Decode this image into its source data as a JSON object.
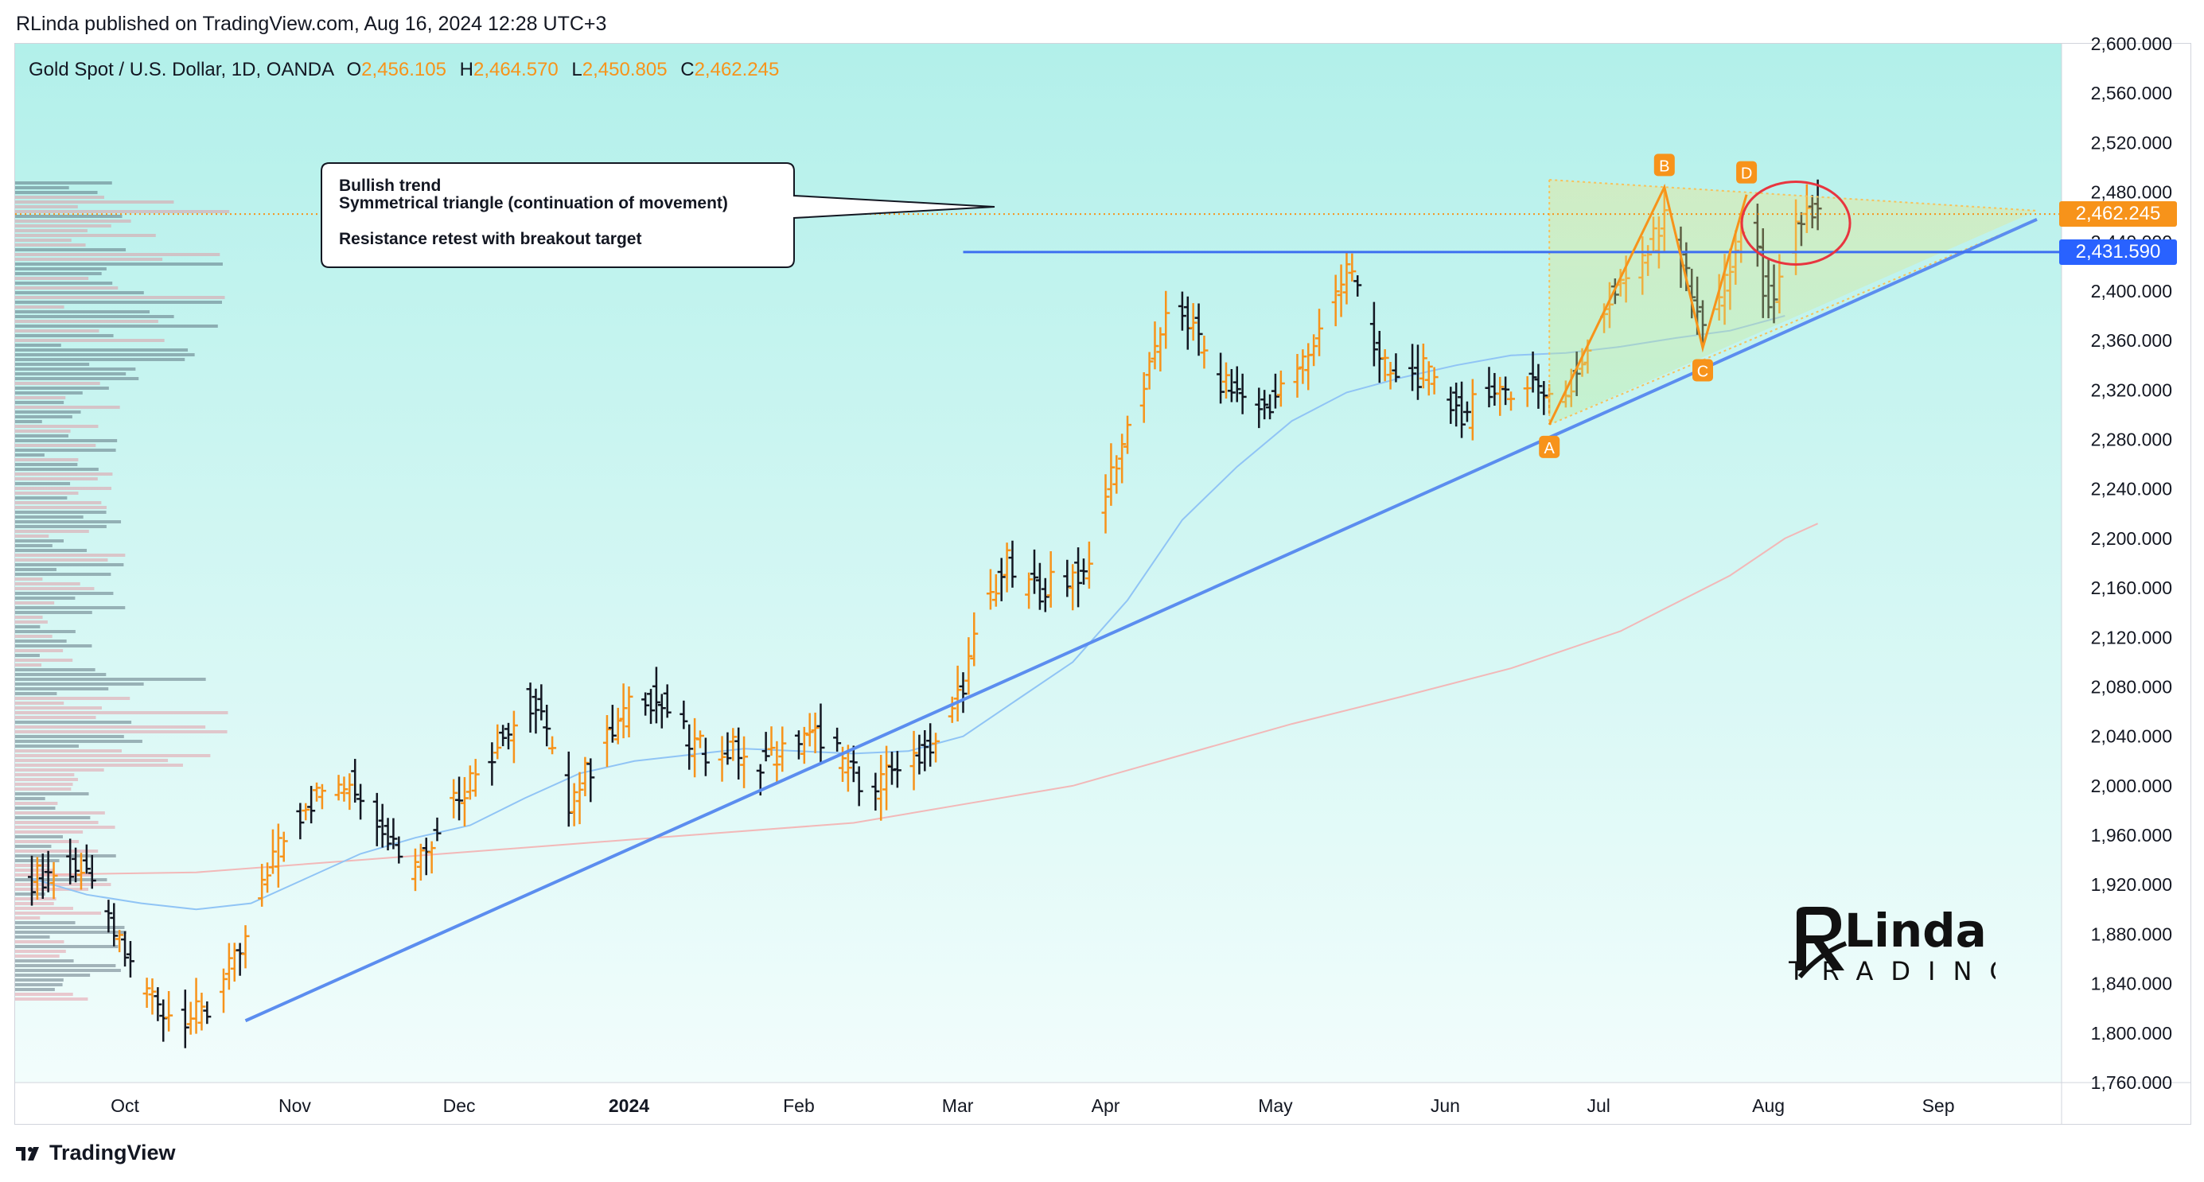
{
  "publisher": "RLinda published on TradingView.com, Aug 16, 2024 12:28 UTC+3",
  "legend": {
    "symbol": "Gold Spot / U.S. Dollar, 1D, OANDA",
    "open_label": "O",
    "open": "2,456.105",
    "high_label": "H",
    "high": "2,464.570",
    "low_label": "L",
    "low": "2,450.805",
    "close_label": "C",
    "close": "2,462.245"
  },
  "callout": {
    "line1": "Bullish trend",
    "line2": "Symmetrical triangle (continuation of movement)",
    "line3": "Resistance retest with breakout target"
  },
  "price_tags": {
    "current": "2,462.245",
    "resistance": "2,431.590"
  },
  "pattern_labels": [
    "A",
    "B",
    "C",
    "D"
  ],
  "watermark": {
    "brand": "Linda",
    "sub": "TRADING"
  },
  "footer": {
    "brand": "TradingView"
  },
  "colors": {
    "bg_top": "#b2f0ea",
    "bg_bottom": "#f2fdfc",
    "candle_up": "#f7931a",
    "candle_down": "#131722",
    "trendline": "#5b8def",
    "resistance": "#3d6ff0",
    "ma_fast": "#90c4f5",
    "ma_slow": "#f2b8b8",
    "triangle": "#f7c25c",
    "highlight": "#e8353f"
  },
  "chart_data": {
    "type": "ohlc",
    "title": "Gold Spot / U.S. Dollar, 1D, OANDA",
    "ylim": [
      1760,
      2600
    ],
    "y_ticks": [
      "1,760.000",
      "1,800.000",
      "1,840.000",
      "1,880.000",
      "1,920.000",
      "1,960.000",
      "2,000.000",
      "2,040.000",
      "2,080.000",
      "2,120.000",
      "2,160.000",
      "2,200.000",
      "2,240.000",
      "2,280.000",
      "2,320.000",
      "2,360.000",
      "2,400.000",
      "2,440.000",
      "2,480.000",
      "2,520.000",
      "2,560.000",
      "2,600.000"
    ],
    "x_ticks": [
      "Oct",
      "Nov",
      "Dec",
      "2024",
      "Feb",
      "Mar",
      "Apr",
      "May",
      "Jun",
      "Jul",
      "Aug",
      "Sep"
    ],
    "x_range_days": [
      0,
      366
    ],
    "x_tick_days": [
      17,
      48,
      78,
      109,
      140,
      169,
      196,
      227,
      258,
      286,
      317,
      348
    ],
    "current_price": 2462.245,
    "resistance_level": 2431.59,
    "support_trendline": [
      [
        39,
        1810
      ],
      [
        366,
        2458
      ]
    ],
    "triangle": {
      "upper": [
        [
          277,
          2490
        ],
        [
          366,
          2465
        ]
      ],
      "lower": [
        [
          277,
          2292
        ],
        [
          366,
          2458
        ]
      ]
    },
    "pattern_points": [
      {
        "label": "A",
        "day": 277,
        "price": 2292
      },
      {
        "label": "B",
        "day": 298,
        "price": 2484
      },
      {
        "label": "C",
        "day": 305,
        "price": 2354
      },
      {
        "label": "D",
        "day": 313,
        "price": 2478
      }
    ],
    "price_path": [
      [
        0,
        1925
      ],
      [
        8,
        1935
      ],
      [
        12,
        1910
      ],
      [
        16,
        1870
      ],
      [
        20,
        1840
      ],
      [
        24,
        1820
      ],
      [
        28,
        1812
      ],
      [
        32,
        1818
      ],
      [
        36,
        1850
      ],
      [
        40,
        1880
      ],
      [
        42,
        1925
      ],
      [
        46,
        1960
      ],
      [
        50,
        1985
      ],
      [
        54,
        1998
      ],
      [
        58,
        2005
      ],
      [
        62,
        1985
      ],
      [
        66,
        1955
      ],
      [
        69,
        1935
      ],
      [
        73,
        1960
      ],
      [
        76,
        1985
      ],
      [
        80,
        2005
      ],
      [
        84,
        2028
      ],
      [
        88,
        2050
      ],
      [
        90,
        2072
      ],
      [
        93,
        2055
      ],
      [
        96,
        2010
      ],
      [
        98,
        1988
      ],
      [
        100,
        2002
      ],
      [
        104,
        2030
      ],
      [
        108,
        2058
      ],
      [
        112,
        2075
      ],
      [
        116,
        2060
      ],
      [
        120,
        2035
      ],
      [
        124,
        2025
      ],
      [
        128,
        2030
      ],
      [
        132,
        2020
      ],
      [
        136,
        2025
      ],
      [
        140,
        2035
      ],
      [
        144,
        2040
      ],
      [
        146,
        2030
      ],
      [
        150,
        2010
      ],
      [
        154,
        1995
      ],
      [
        158,
        2018
      ],
      [
        162,
        2028
      ],
      [
        166,
        2040
      ],
      [
        170,
        2085
      ],
      [
        174,
        2145
      ],
      [
        178,
        2180
      ],
      [
        180,
        2165
      ],
      [
        184,
        2160
      ],
      [
        188,
        2168
      ],
      [
        192,
        2172
      ],
      [
        196,
        2238
      ],
      [
        200,
        2290
      ],
      [
        204,
        2335
      ],
      [
        206,
        2370
      ],
      [
        210,
        2385
      ],
      [
        214,
        2350
      ],
      [
        216,
        2330
      ],
      [
        220,
        2318
      ],
      [
        224,
        2305
      ],
      [
        228,
        2318
      ],
      [
        232,
        2342
      ],
      [
        236,
        2376
      ],
      [
        240,
        2418
      ],
      [
        242,
        2405
      ],
      [
        246,
        2340
      ],
      [
        250,
        2325
      ],
      [
        254,
        2335
      ],
      [
        258,
        2310
      ],
      [
        262,
        2300
      ],
      [
        266,
        2325
      ],
      [
        270,
        2315
      ],
      [
        274,
        2330
      ],
      [
        277,
        2310
      ],
      [
        280,
        2318
      ],
      [
        284,
        2355
      ],
      [
        288,
        2395
      ],
      [
        292,
        2415
      ],
      [
        296,
        2440
      ],
      [
        298,
        2470
      ],
      [
        302,
        2410
      ],
      [
        305,
        2368
      ],
      [
        308,
        2390
      ],
      [
        311,
        2430
      ],
      [
        313,
        2468
      ],
      [
        316,
        2405
      ],
      [
        318,
        2385
      ],
      [
        320,
        2420
      ],
      [
        322,
        2450
      ],
      [
        324,
        2465
      ],
      [
        326,
        2462
      ]
    ],
    "ma_fast": [
      [
        0,
        1925
      ],
      [
        10,
        1912
      ],
      [
        20,
        1905
      ],
      [
        30,
        1900
      ],
      [
        40,
        1905
      ],
      [
        50,
        1925
      ],
      [
        60,
        1945
      ],
      [
        70,
        1958
      ],
      [
        80,
        1968
      ],
      [
        90,
        1990
      ],
      [
        100,
        2010
      ],
      [
        110,
        2020
      ],
      [
        120,
        2025
      ],
      [
        130,
        2030
      ],
      [
        140,
        2028
      ],
      [
        150,
        2026
      ],
      [
        160,
        2028
      ],
      [
        170,
        2040
      ],
      [
        180,
        2070
      ],
      [
        190,
        2100
      ],
      [
        200,
        2150
      ],
      [
        210,
        2215
      ],
      [
        220,
        2258
      ],
      [
        230,
        2295
      ],
      [
        240,
        2318
      ],
      [
        250,
        2330
      ],
      [
        260,
        2340
      ],
      [
        270,
        2348
      ],
      [
        280,
        2350
      ],
      [
        290,
        2355
      ],
      [
        300,
        2362
      ],
      [
        310,
        2368
      ],
      [
        320,
        2380
      ]
    ],
    "ma_slow": [
      [
        0,
        1928
      ],
      [
        30,
        1930
      ],
      [
        60,
        1940
      ],
      [
        90,
        1950
      ],
      [
        120,
        1960
      ],
      [
        150,
        1970
      ],
      [
        170,
        1985
      ],
      [
        190,
        2000
      ],
      [
        210,
        2025
      ],
      [
        230,
        2050
      ],
      [
        250,
        2072
      ],
      [
        270,
        2095
      ],
      [
        290,
        2125
      ],
      [
        310,
        2170
      ],
      [
        320,
        2200
      ],
      [
        326,
        2212
      ]
    ]
  }
}
